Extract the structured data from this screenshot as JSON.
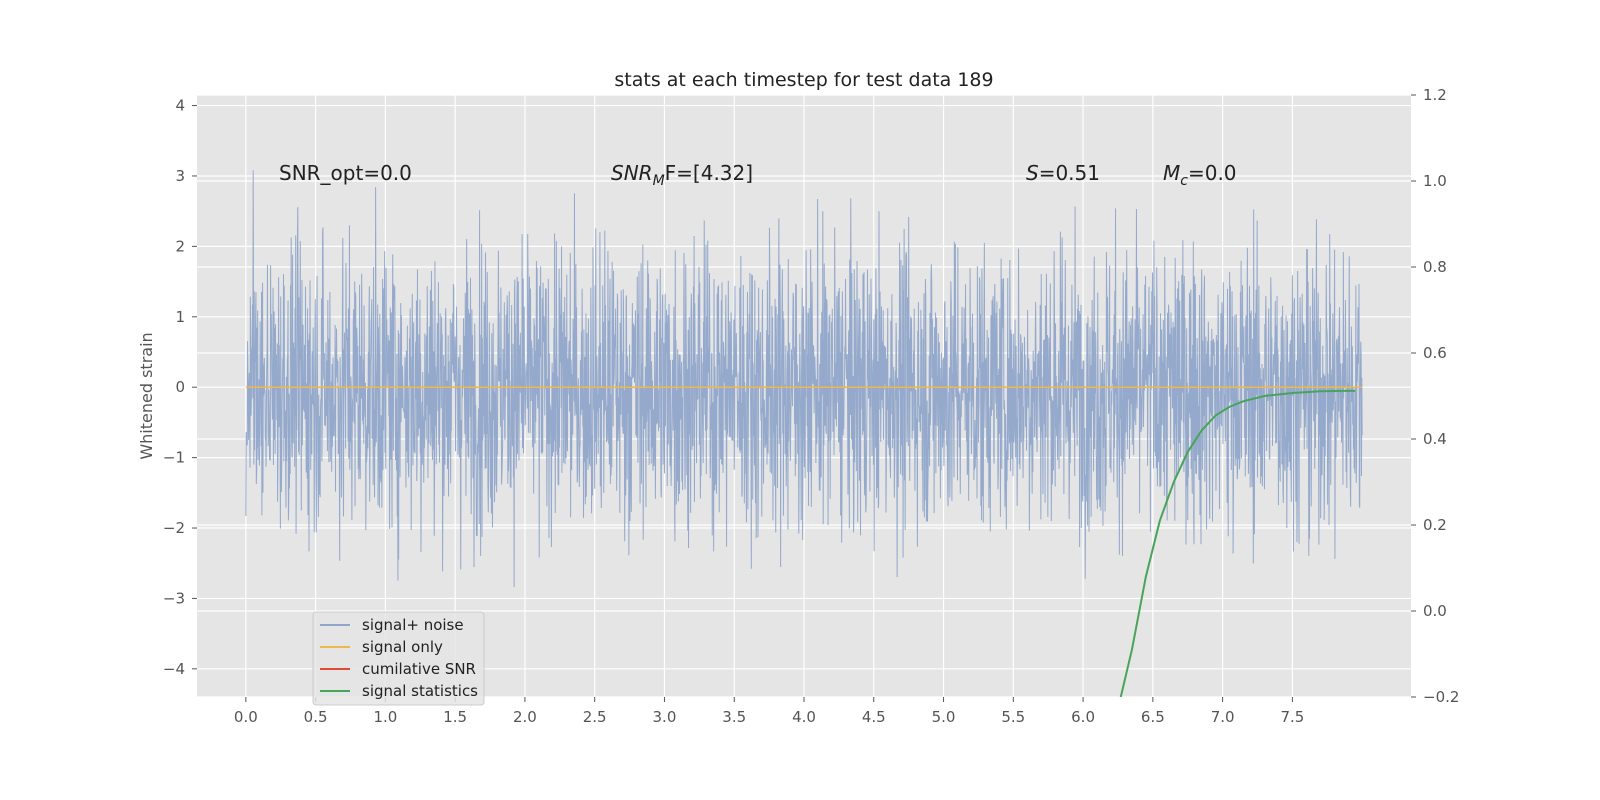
{
  "chart_data": {
    "type": "line",
    "title": "stats at each timestep for test data 189",
    "ylabel": "Whitened strain",
    "xlabel": "",
    "xlim": [
      -0.35,
      8.35
    ],
    "ylim": [
      -4.4,
      4.15
    ],
    "y2lim": [
      -0.2,
      1.2
    ],
    "xticks": [
      0.0,
      0.5,
      1.0,
      1.5,
      2.0,
      2.5,
      3.0,
      3.5,
      4.0,
      4.5,
      5.0,
      5.5,
      6.0,
      6.5,
      7.0,
      7.5
    ],
    "xtick_labels": [
      "0.0",
      "0.5",
      "1.0",
      "1.5",
      "2.0",
      "2.5",
      "3.0",
      "3.5",
      "4.0",
      "4.5",
      "5.0",
      "5.5",
      "6.0",
      "6.5",
      "7.0",
      "7.5"
    ],
    "yticks": [
      4,
      3,
      2,
      1,
      0,
      -1,
      -2,
      -3,
      -4
    ],
    "ytick_labels": [
      "4",
      "3",
      "2",
      "1",
      "0",
      "−1",
      "−2",
      "−3",
      "−4"
    ],
    "y2ticks": [
      1.2,
      1.0,
      0.8,
      0.6,
      0.4,
      0.2,
      0.0,
      -0.2
    ],
    "y2tick_labels": [
      "1.2",
      "1.0",
      "0.8",
      "0.6",
      "0.4",
      "0.2",
      "0.0",
      "−0.2"
    ],
    "grid": true,
    "legend_position": "lower-left",
    "colors": {
      "axes_bg": "#e5e5e5",
      "grid": "#ffffff",
      "noise": "#8fa5c9",
      "signal": "#f0b84a",
      "snr": "#e24a33",
      "stats": "#4aa35a",
      "text": "#333333",
      "tick_text": "#555555"
    },
    "series": [
      {
        "name": "signal+ noise",
        "axis": "left",
        "style": "dense noise trace, sampled over t from 0.0 to 8.0, approx. bounded within [-4.0, 3.8]",
        "x_range": [
          0.0,
          8.0
        ],
        "approx_bounds": [
          -4.0,
          3.8
        ],
        "typical_sigma": 1.0
      },
      {
        "name": "signal only",
        "axis": "left",
        "x": [
          0.0,
          8.0
        ],
        "y": [
          0.0,
          0.0
        ]
      },
      {
        "name": "cumilative SNR",
        "axis": "right",
        "x": [],
        "y": []
      },
      {
        "name": "signal statistics",
        "axis": "right",
        "x": [
          6.27,
          6.35,
          6.45,
          6.55,
          6.65,
          6.75,
          6.85,
          6.95,
          7.05,
          7.15,
          7.3,
          7.5,
          7.7,
          7.85,
          7.95
        ],
        "y": [
          -0.2,
          -0.09,
          0.08,
          0.21,
          0.3,
          0.37,
          0.42,
          0.455,
          0.475,
          0.488,
          0.5,
          0.507,
          0.511,
          0.512,
          0.512
        ]
      }
    ],
    "legend": [
      "signal+ noise",
      "signal only",
      "cumilative SNR",
      "signal statistics"
    ],
    "annotations": {
      "snr_opt": "SNR_opt=0.0",
      "snr_mf_main": "SNR",
      "snr_mf_sub": "M",
      "snr_mf_rest": "F=[4.32]",
      "s_var": "S",
      "s_rest": "=0.51",
      "mc_var": "M",
      "mc_sub": "c",
      "mc_rest": "=0.0"
    }
  }
}
